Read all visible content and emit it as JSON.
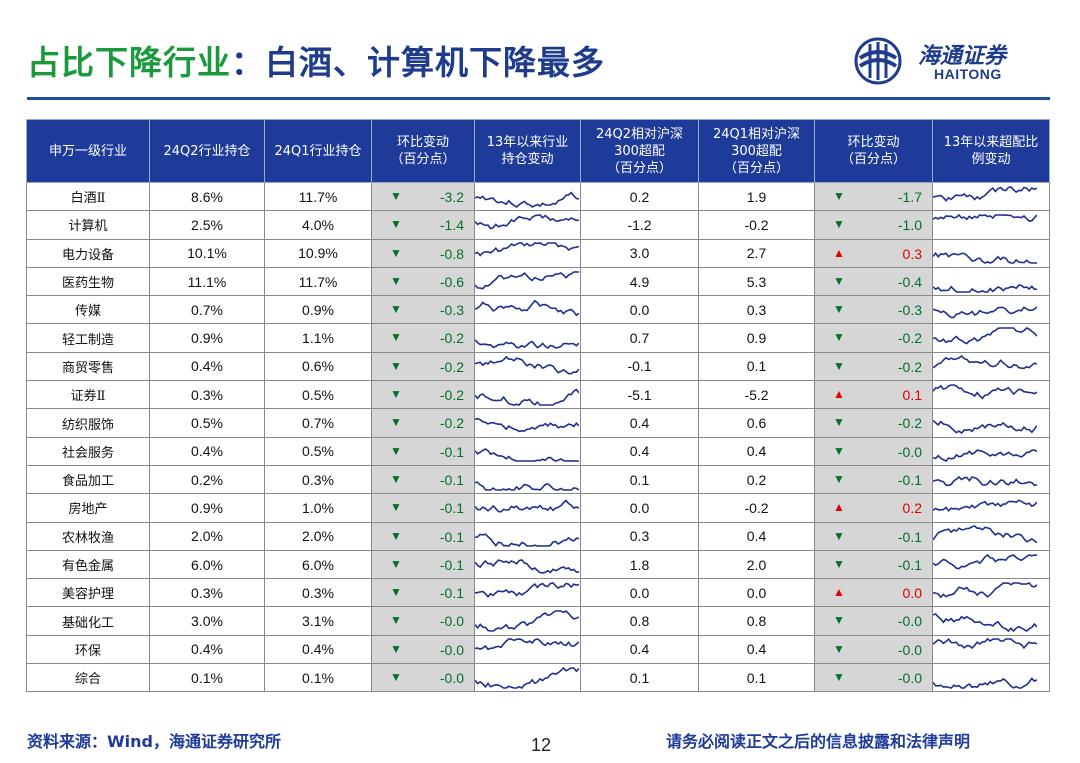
{
  "title": {
    "part1": "占比下降行业",
    "part2": "：白酒、计算机下降最多"
  },
  "logo": {
    "cn": "海通证券",
    "en": "HAITONG"
  },
  "table": {
    "headers": [
      "申万一级行业",
      "24Q2行业持仓",
      "24Q1行业持仓",
      "环比变动\n（百分点）",
      "13年以来行业\n持仓变动",
      "24Q2相对沪深\n300超配\n（百分点）",
      "24Q1相对沪深\n300超配\n（百分点）",
      "环比变动\n（百分点）",
      "13年以来超配比\n例变动"
    ],
    "rows": [
      {
        "industry": "白酒Ⅱ",
        "q2": "8.6%",
        "q1": "11.7%",
        "chg": "-3.2",
        "chg_dir": "down",
        "ow_q2": "0.2",
        "ow_q1": "1.9",
        "ow_chg": "-1.7",
        "ow_dir": "down"
      },
      {
        "industry": "计算机",
        "q2": "2.5%",
        "q1": "4.0%",
        "chg": "-1.4",
        "chg_dir": "down",
        "ow_q2": "-1.2",
        "ow_q1": "-0.2",
        "ow_chg": "-1.0",
        "ow_dir": "down"
      },
      {
        "industry": "电力设备",
        "q2": "10.1%",
        "q1": "10.9%",
        "chg": "-0.8",
        "chg_dir": "down",
        "ow_q2": "3.0",
        "ow_q1": "2.7",
        "ow_chg": "0.3",
        "ow_dir": "up"
      },
      {
        "industry": "医药生物",
        "q2": "11.1%",
        "q1": "11.7%",
        "chg": "-0.6",
        "chg_dir": "down",
        "ow_q2": "4.9",
        "ow_q1": "5.3",
        "ow_chg": "-0.4",
        "ow_dir": "down"
      },
      {
        "industry": "传媒",
        "q2": "0.7%",
        "q1": "0.9%",
        "chg": "-0.3",
        "chg_dir": "down",
        "ow_q2": "0.0",
        "ow_q1": "0.3",
        "ow_chg": "-0.3",
        "ow_dir": "down"
      },
      {
        "industry": "轻工制造",
        "q2": "0.9%",
        "q1": "1.1%",
        "chg": "-0.2",
        "chg_dir": "down",
        "ow_q2": "0.7",
        "ow_q1": "0.9",
        "ow_chg": "-0.2",
        "ow_dir": "down"
      },
      {
        "industry": "商贸零售",
        "q2": "0.4%",
        "q1": "0.6%",
        "chg": "-0.2",
        "chg_dir": "down",
        "ow_q2": "-0.1",
        "ow_q1": "0.1",
        "ow_chg": "-0.2",
        "ow_dir": "down"
      },
      {
        "industry": "证券Ⅱ",
        "q2": "0.3%",
        "q1": "0.5%",
        "chg": "-0.2",
        "chg_dir": "down",
        "ow_q2": "-5.1",
        "ow_q1": "-5.2",
        "ow_chg": "0.1",
        "ow_dir": "up"
      },
      {
        "industry": "纺织服饰",
        "q2": "0.5%",
        "q1": "0.7%",
        "chg": "-0.2",
        "chg_dir": "down",
        "ow_q2": "0.4",
        "ow_q1": "0.6",
        "ow_chg": "-0.2",
        "ow_dir": "down"
      },
      {
        "industry": "社会服务",
        "q2": "0.4%",
        "q1": "0.5%",
        "chg": "-0.1",
        "chg_dir": "down",
        "ow_q2": "0.4",
        "ow_q1": "0.4",
        "ow_chg": "-0.0",
        "ow_dir": "down"
      },
      {
        "industry": "食品加工",
        "q2": "0.2%",
        "q1": "0.3%",
        "chg": "-0.1",
        "chg_dir": "down",
        "ow_q2": "0.1",
        "ow_q1": "0.2",
        "ow_chg": "-0.1",
        "ow_dir": "down"
      },
      {
        "industry": "房地产",
        "q2": "0.9%",
        "q1": "1.0%",
        "chg": "-0.1",
        "chg_dir": "down",
        "ow_q2": "0.0",
        "ow_q1": "-0.2",
        "ow_chg": "0.2",
        "ow_dir": "up"
      },
      {
        "industry": "农林牧渔",
        "q2": "2.0%",
        "q1": "2.0%",
        "chg": "-0.1",
        "chg_dir": "down",
        "ow_q2": "0.3",
        "ow_q1": "0.4",
        "ow_chg": "-0.1",
        "ow_dir": "down"
      },
      {
        "industry": "有色金属",
        "q2": "6.0%",
        "q1": "6.0%",
        "chg": "-0.1",
        "chg_dir": "down",
        "ow_q2": "1.8",
        "ow_q1": "2.0",
        "ow_chg": "-0.1",
        "ow_dir": "down"
      },
      {
        "industry": "美容护理",
        "q2": "0.3%",
        "q1": "0.3%",
        "chg": "-0.1",
        "chg_dir": "down",
        "ow_q2": "0.0",
        "ow_q1": "0.0",
        "ow_chg": "0.0",
        "ow_dir": "up"
      },
      {
        "industry": "基础化工",
        "q2": "3.0%",
        "q1": "3.1%",
        "chg": "-0.0",
        "chg_dir": "down",
        "ow_q2": "0.8",
        "ow_q1": "0.8",
        "ow_chg": "-0.0",
        "ow_dir": "down"
      },
      {
        "industry": "环保",
        "q2": "0.4%",
        "q1": "0.4%",
        "chg": "-0.0",
        "chg_dir": "down",
        "ow_q2": "0.4",
        "ow_q1": "0.4",
        "ow_chg": "-0.0",
        "ow_dir": "down"
      },
      {
        "industry": "综合",
        "q2": "0.1%",
        "q1": "0.1%",
        "chg": "-0.0",
        "chg_dir": "down",
        "ow_q2": "0.1",
        "ow_q1": "0.1",
        "ow_chg": "-0.0",
        "ow_dir": "down"
      }
    ]
  },
  "colors": {
    "line": "#1f2f8f",
    "header_bg": "#1f3b99",
    "down": "#00702a",
    "up": "#e00000",
    "change_bg": "#d6d6d6"
  },
  "footer": {
    "source": "资料来源：Wind，海通证券研究所",
    "page": "12",
    "disclaimer": "请务必阅读正文之后的信息披露和法律声明"
  }
}
